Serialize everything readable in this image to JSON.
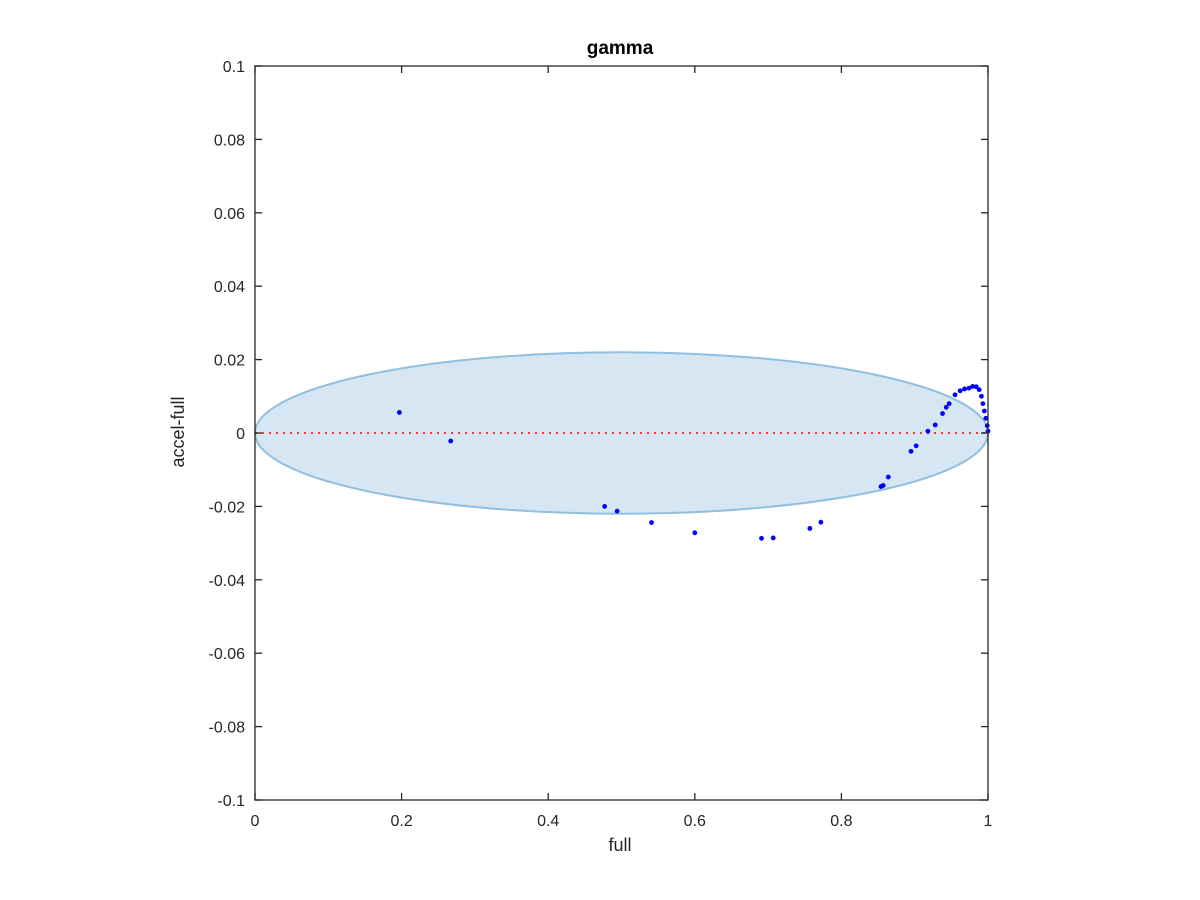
{
  "chart_data": {
    "type": "scatter",
    "title": "gamma",
    "xlabel": "full",
    "ylabel": "accel-full",
    "xlim": [
      0,
      1
    ],
    "ylim": [
      -0.1,
      0.1
    ],
    "x_ticks": [
      0,
      0.2,
      0.4,
      0.6,
      0.8,
      1
    ],
    "x_tick_labels": [
      "0",
      "0.2",
      "0.4",
      "0.6",
      "0.8",
      "1"
    ],
    "y_ticks": [
      -0.1,
      -0.08,
      -0.06,
      -0.04,
      -0.02,
      0,
      0.02,
      0.04,
      0.06,
      0.08,
      0.1
    ],
    "y_tick_labels": [
      "-0.1",
      "-0.08",
      "-0.06",
      "-0.04",
      "-0.02",
      "0",
      "0.02",
      "0.04",
      "0.06",
      "0.08",
      "0.1"
    ],
    "grid": false,
    "legend": "none",
    "reference_line": {
      "y": 0,
      "color": "#ff3333",
      "style": "dotted"
    },
    "region": {
      "shape": "ellipse",
      "center": [
        0.5,
        0
      ],
      "x_radius": 0.5,
      "y_radius": 0.022,
      "fill": "#d6e6f3",
      "stroke": "#91bfe0"
    },
    "series": [
      {
        "color": "#0000ff",
        "points": [
          [
            0.197,
            0.0056
          ],
          [
            0.267,
            -0.0022
          ],
          [
            0.477,
            -0.02
          ],
          [
            0.494,
            -0.0213
          ],
          [
            0.541,
            -0.0244
          ],
          [
            0.6,
            -0.0272
          ],
          [
            0.691,
            -0.0287
          ],
          [
            0.707,
            -0.0286
          ],
          [
            0.757,
            -0.026
          ],
          [
            0.772,
            -0.0243
          ],
          [
            0.854,
            -0.0146
          ],
          [
            0.857,
            -0.0143
          ],
          [
            0.864,
            -0.012
          ],
          [
            0.895,
            -0.005
          ],
          [
            0.902,
            -0.0035
          ],
          [
            0.918,
            0.0005
          ],
          [
            0.928,
            0.0022
          ],
          [
            0.938,
            0.0053
          ],
          [
            0.943,
            0.007
          ],
          [
            0.947,
            0.008
          ],
          [
            0.955,
            0.0104
          ],
          [
            0.962,
            0.0115
          ],
          [
            0.968,
            0.012
          ],
          [
            0.974,
            0.0122
          ],
          [
            0.979,
            0.0127
          ],
          [
            0.984,
            0.0126
          ],
          [
            0.988,
            0.0118
          ],
          [
            0.991,
            0.01
          ],
          [
            0.993,
            0.008
          ],
          [
            0.995,
            0.006
          ],
          [
            0.997,
            0.004
          ],
          [
            0.999,
            0.002
          ],
          [
            1.0,
            0.0005
          ]
        ]
      }
    ]
  }
}
